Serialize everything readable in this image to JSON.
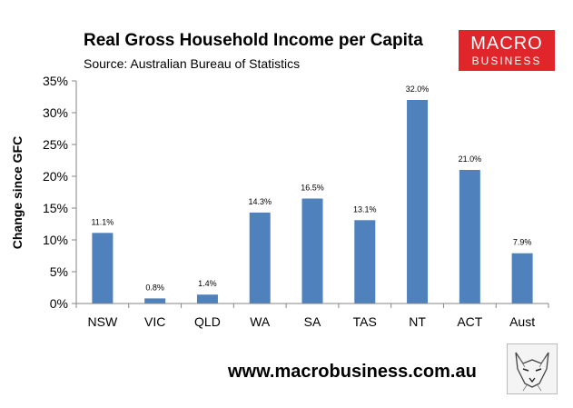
{
  "header": {
    "title": "Real Gross Household Income per Capita",
    "subtitle": "Source: Australian Bureau of Statistics"
  },
  "logo": {
    "line1": "MACRO",
    "line2": "BUSINESS",
    "color": "#e0262b"
  },
  "footer": {
    "website": "www.macrobusiness.com.au",
    "mascot_icon": "wolf-sketch-icon"
  },
  "chart_data": {
    "type": "bar",
    "title": "Real Gross Household Income per Capita",
    "xlabel": "",
    "ylabel": "Change since GFC",
    "categories": [
      "NSW",
      "VIC",
      "QLD",
      "WA",
      "SA",
      "TAS",
      "NT",
      "ACT",
      "Aust"
    ],
    "values": [
      11.1,
      0.8,
      1.4,
      14.3,
      16.5,
      13.1,
      32.0,
      21.0,
      7.9
    ],
    "data_labels": [
      "11.1%",
      "0.8%",
      "1.4%",
      "14.3%",
      "16.5%",
      "13.1%",
      "32.0%",
      "21.0%",
      "7.9%"
    ],
    "ylim": [
      0,
      35
    ],
    "yticks": [
      0,
      5,
      10,
      15,
      20,
      25,
      30,
      35
    ],
    "ytick_labels": [
      "0%",
      "5%",
      "10%",
      "15%",
      "20%",
      "25%",
      "30%",
      "35%"
    ],
    "bar_color": "#4f81bd",
    "grid": false,
    "legend": "none"
  }
}
